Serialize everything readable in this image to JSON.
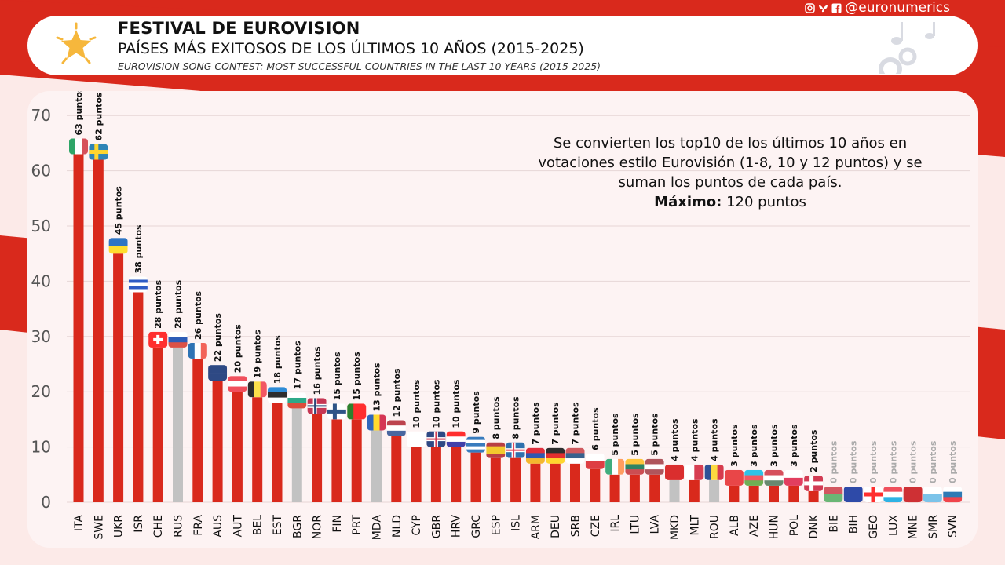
{
  "header": {
    "title": "FESTIVAL DE EUROVISION",
    "subtitle": "PAÍSES MÁS EXITOSOS DE LOS ÚLTIMOS 10 AÑOS (2015-2025)",
    "subtitle_en": "EUROVISION SONG CONTEST: MOST SUCCESSFUL COUNTRIES IN THE LAST 10 YEARS (2015-2025)",
    "handle": "@euronumerics",
    "social_icons": [
      "instagram-icon",
      "bluesky-icon",
      "facebook-icon"
    ]
  },
  "annotation": {
    "line1": "Se convierten los top10 de los últimos 10 años en",
    "line2": "votaciones estilo Eurovisión (1-8, 10 y 12 puntos) y se",
    "line3": "suman los puntos de cada país.",
    "max_label": "Máximo:",
    "max_value": "120 puntos"
  },
  "colors": {
    "background": "#d9291c",
    "bar_active": "#d9291c",
    "bar_inactive": "#c2c2c2",
    "card": "#fdf3f3"
  },
  "chart_data": {
    "type": "bar",
    "ylim": [
      0,
      70
    ],
    "yticks": [
      0,
      10,
      20,
      30,
      40,
      50,
      60,
      70
    ],
    "grid": true,
    "unit_suffix": "puntos",
    "categories": [
      "ITA",
      "SWE",
      "UKR",
      "ISR",
      "CHE",
      "RUS",
      "FRA",
      "AUS",
      "AUT",
      "BEL",
      "EST",
      "BGR",
      "NOR",
      "FIN",
      "PRT",
      "MDA",
      "NLD",
      "CYP",
      "GBR",
      "HRV",
      "GRC",
      "ESP",
      "ISL",
      "ARM",
      "DEU",
      "SRB",
      "CZE",
      "IRL",
      "LTU",
      "LVA",
      "MKD",
      "MLT",
      "ROU",
      "ALB",
      "AZE",
      "HUN",
      "POL",
      "DNK",
      "BIE",
      "BIH",
      "GEO",
      "LUX",
      "MNE",
      "SMR",
      "SVN"
    ],
    "values": [
      63,
      62,
      45,
      38,
      28,
      28,
      26,
      22,
      20,
      19,
      18,
      17,
      16,
      15,
      15,
      13,
      12,
      10,
      10,
      10,
      9,
      8,
      8,
      7,
      7,
      7,
      6,
      5,
      5,
      5,
      4,
      4,
      4,
      3,
      3,
      3,
      3,
      2,
      0,
      0,
      0,
      0,
      0,
      0,
      0
    ],
    "inactive": [
      "RUS",
      "BGR",
      "MDA",
      "MKD",
      "ROU",
      "BIE",
      "BIH"
    ]
  }
}
